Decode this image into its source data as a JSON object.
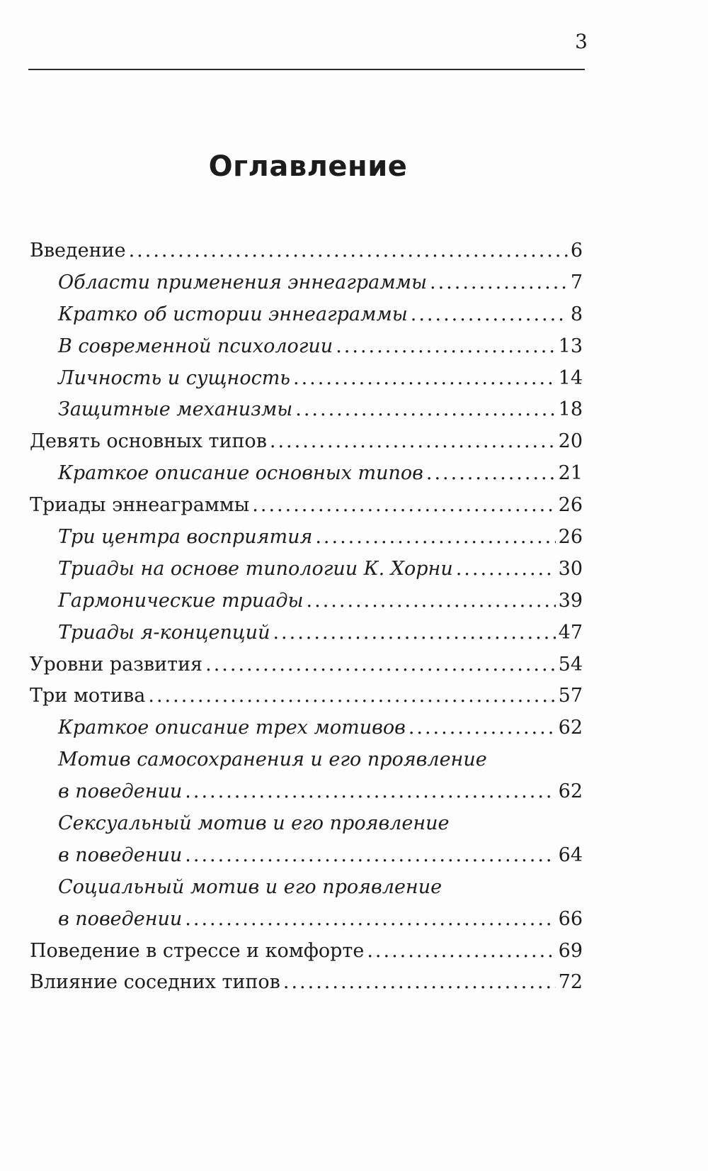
{
  "page_number": "3",
  "title": "Оглавление",
  "entries": [
    {
      "text": "Введение",
      "page": "6",
      "level": 1
    },
    {
      "text": "Области применения эннеаграммы",
      "page": "7",
      "level": 2
    },
    {
      "text": "Кратко об истории эннеаграммы",
      "page": "8",
      "level": 2
    },
    {
      "text": "В современной психологии",
      "page": "13",
      "level": 2
    },
    {
      "text": "Личность и сущность",
      "page": "14",
      "level": 2
    },
    {
      "text": "Защитные механизмы",
      "page": "18",
      "level": 2
    },
    {
      "text": "Девять основных типов",
      "page": "20",
      "level": 1
    },
    {
      "text": "Краткое описание основных типов",
      "page": "21",
      "level": 2
    },
    {
      "text": "Триады эннеаграммы",
      "page": "26",
      "level": 1
    },
    {
      "text": "Три центра восприятия",
      "page": "26",
      "level": 2
    },
    {
      "text": "Триады на основе типологии К. Хорни",
      "page": "30",
      "level": 2
    },
    {
      "text": "Гармонические триады",
      "page": "39",
      "level": 2
    },
    {
      "text": "Триады я-концепций",
      "page": "47",
      "level": 2
    },
    {
      "text": "Уровни развития",
      "page": "54",
      "level": 1
    },
    {
      "text": "Три мотива",
      "page": "57",
      "level": 1
    },
    {
      "text": "Краткое описание трех мотивов",
      "page": "62",
      "level": 2
    },
    {
      "text": "Мотив самосохранения и его проявление",
      "page": "",
      "level": 2
    },
    {
      "text": "в поведении",
      "page": "62",
      "level": 2
    },
    {
      "text": "Сексуальный мотив и его проявление",
      "page": "",
      "level": 2
    },
    {
      "text": "в поведении",
      "page": "64",
      "level": 2
    },
    {
      "text": "Социальный мотив и его проявление",
      "page": "",
      "level": 2
    },
    {
      "text": "в поведении",
      "page": "66",
      "level": 2
    },
    {
      "text": "Поведение в стрессе и комфорте",
      "page": "69",
      "level": 1
    },
    {
      "text": "Влияние соседних типов",
      "page": "72",
      "level": 1
    }
  ]
}
